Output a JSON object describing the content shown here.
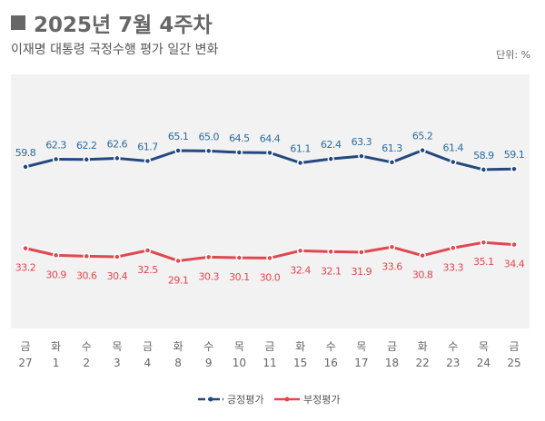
{
  "header": {
    "title": "2025년 7월 4주차",
    "subtitle": "이재명 대통령 국정수행 평가 일간 변화",
    "unit": "단위: %"
  },
  "chart_data": {
    "type": "line",
    "title": "2025년 7월 4주차",
    "subtitle": "이재명 대통령 국정수행 평가 일간 변화",
    "categories_day": [
      "금",
      "화",
      "수",
      "목",
      "금",
      "화",
      "수",
      "목",
      "금",
      "화",
      "수",
      "목",
      "금",
      "화",
      "수",
      "목",
      "금"
    ],
    "categories": [
      "27",
      "1",
      "2",
      "3",
      "4",
      "8",
      "9",
      "10",
      "11",
      "15",
      "16",
      "17",
      "18",
      "22",
      "23",
      "24",
      "25"
    ],
    "ylim": [
      7,
      90
    ],
    "grid": false,
    "legend": "bottom-right",
    "series": [
      {
        "name": "긍정평가",
        "color": "#23497f",
        "label_color": "#2a6a9e",
        "values": [
          59.8,
          62.3,
          62.2,
          62.6,
          61.7,
          65.1,
          65.0,
          64.5,
          64.4,
          61.1,
          62.4,
          63.3,
          61.3,
          65.2,
          61.4,
          58.9,
          59.1
        ]
      },
      {
        "name": "부정평가",
        "color": "#e0484f",
        "label_color": "#e0484f",
        "values": [
          33.2,
          30.9,
          30.6,
          30.4,
          32.5,
          29.1,
          30.3,
          30.1,
          30.0,
          32.4,
          32.1,
          31.9,
          33.6,
          30.8,
          33.3,
          35.1,
          34.4
        ]
      }
    ],
    "plot_background": "#f2f2f2"
  }
}
